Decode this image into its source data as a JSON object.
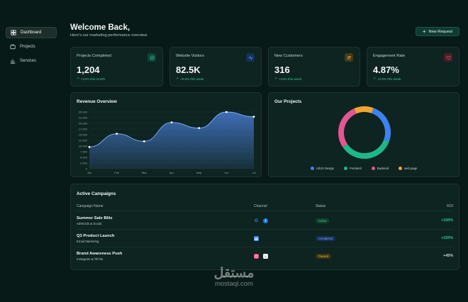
{
  "sidebar": {
    "items": [
      {
        "label": "Dashboard",
        "icon": "dashboard-icon",
        "active": true
      },
      {
        "label": "Projects",
        "icon": "projects-icon",
        "active": false
      },
      {
        "label": "Services",
        "icon": "services-icon",
        "active": false
      }
    ]
  },
  "header": {
    "title": "Welcome Back,",
    "subtitle": "Here's our marketing performance overview.",
    "new_request_label": "New Request"
  },
  "stats": [
    {
      "title": "Projects Completed",
      "value": "1,204",
      "change": "+12% this month",
      "icon": "check-circle-icon",
      "icon_color": "#2fc79a"
    },
    {
      "title": "Website Visitors",
      "value": "82.5K",
      "change": "+8.5% this week",
      "icon": "pulse-icon",
      "icon_color": "#4f8ff0"
    },
    {
      "title": "New Customers",
      "value": "316",
      "change": "+10% this week",
      "icon": "users-icon",
      "icon_color": "#e2b53a"
    },
    {
      "title": "Engagement Rate",
      "value": "4.87%",
      "change": "+0.5% this week",
      "icon": "heart-icon",
      "icon_color": "#e0566a"
    }
  ],
  "revenue": {
    "title": "Revenue Overview"
  },
  "projects": {
    "title": "Our Projects"
  },
  "chart_data": [
    {
      "type": "area",
      "title": "Revenue Overview",
      "categories": [
        "Jan",
        "Feb",
        "Mar",
        "Apr",
        "May",
        "Jun",
        "Jul"
      ],
      "values": [
        11500,
        18500,
        14500,
        24500,
        21500,
        30000,
        27500
      ],
      "ylim": [
        0,
        30000
      ],
      "yticks": [
        "0",
        "2,500",
        "5,000",
        "7,500",
        "10,000",
        "12,500",
        "15,000",
        "17,500",
        "20,000",
        "22,500",
        "25,000"
      ],
      "grid": true,
      "color": "#4f86e8"
    },
    {
      "type": "pie",
      "title": "Our Projects",
      "donut": true,
      "labels": [
        "UI/UX Design",
        "Frontend",
        "Backend",
        "web page"
      ],
      "values": [
        25,
        35,
        28,
        12
      ],
      "colors": [
        "#3d82f0",
        "#1db88a",
        "#e45592",
        "#f0a530"
      ],
      "legend": "bottom"
    }
  ],
  "campaigns": {
    "title": "Active Campaigns",
    "headers": {
      "name": "Campaign Name",
      "channel": "Channel",
      "status": "Status",
      "roi": "ROI"
    },
    "rows": [
      {
        "name": "Summer Sale Blitz",
        "channels_text": "AdWords & Social",
        "channel_icons": [
          "google-icon",
          "facebook-icon"
        ],
        "status": "Active",
        "status_bg": "#12402e",
        "status_fg": "#3ed191",
        "roi": "+150%",
        "roi_color": "#34c58c"
      },
      {
        "name": "Q3 Product Launch",
        "channels_text": "Email Marketing",
        "channel_icons": [
          "email-icon"
        ],
        "status": "Completed",
        "status_bg": "#172f5a",
        "status_fg": "#7fa8f0",
        "roi": "+220%",
        "roi_color": "#34c58c"
      },
      {
        "name": "Brand Awareness Push",
        "channels_text": "Instagram & TikTok",
        "channel_icons": [
          "instagram-icon",
          "tiktok-icon"
        ],
        "status": "Paused",
        "status_bg": "#3f3412",
        "status_fg": "#e0b94a",
        "roi": "+45%",
        "roi_color": "#cdd8d5"
      }
    ]
  },
  "watermark": {
    "arabic": "مستقل",
    "latin": "mostaql.com"
  }
}
